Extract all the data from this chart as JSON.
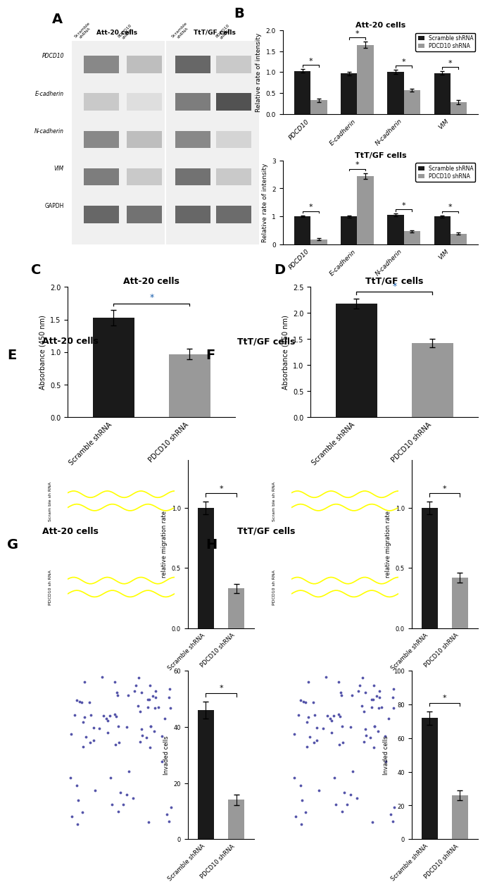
{
  "panel_B_att20": {
    "title": "Att-20 cells",
    "categories": [
      "PDCD10",
      "E-cadherin",
      "N-cadherin",
      "VIM"
    ],
    "scramble": [
      1.03,
      0.97,
      1.0,
      0.98
    ],
    "pdcd10": [
      0.33,
      1.65,
      0.57,
      0.29
    ],
    "scramble_err": [
      0.04,
      0.04,
      0.05,
      0.04
    ],
    "pdcd10_err": [
      0.04,
      0.07,
      0.04,
      0.05
    ],
    "ylabel": "Relative rate of intensity",
    "ylim": [
      0,
      2.0
    ],
    "yticks": [
      0.0,
      0.5,
      1.0,
      1.5,
      2.0
    ]
  },
  "panel_B_ttgf": {
    "title": "TtT/GF cells",
    "categories": [
      "PDCD10",
      "E-cadherin",
      "N-cadherin",
      "VIM"
    ],
    "scramble": [
      1.0,
      1.0,
      1.05,
      1.0
    ],
    "pdcd10": [
      0.18,
      2.45,
      0.47,
      0.38
    ],
    "scramble_err": [
      0.03,
      0.04,
      0.05,
      0.04
    ],
    "pdcd10_err": [
      0.04,
      0.1,
      0.04,
      0.04
    ],
    "ylabel": "Relative rate of intensity",
    "ylim": [
      0,
      3.0
    ],
    "yticks": [
      0,
      1,
      2,
      3
    ]
  },
  "panel_C": {
    "title": "Att-20 cells",
    "categories": [
      "Scramble shRNA",
      "PDCD10 shRNA"
    ],
    "values": [
      1.53,
      0.97
    ],
    "errors": [
      0.12,
      0.08
    ],
    "ylabel": "Absorbance (450 nm)",
    "ylim": [
      0,
      2.0
    ],
    "yticks": [
      0.0,
      0.5,
      1.0,
      1.5,
      2.0
    ]
  },
  "panel_D": {
    "title": "TtT/GF cells",
    "categories": [
      "Scramble shRNA",
      "PDCD10 shRNA"
    ],
    "values": [
      2.18,
      1.42
    ],
    "errors": [
      0.1,
      0.08
    ],
    "ylabel": "Absorbance (450 nm)",
    "ylim": [
      0,
      2.5
    ],
    "yticks": [
      0.0,
      0.5,
      1.0,
      1.5,
      2.0,
      2.5
    ]
  },
  "panel_E_bar": {
    "title": "",
    "categories": [
      "Scramble shRNA",
      "PDCD10 shRNA"
    ],
    "values": [
      1.0,
      0.33
    ],
    "errors": [
      0.05,
      0.04
    ],
    "ylabel": "relative migration rate",
    "ylim": [
      0,
      1.4
    ],
    "yticks": [
      0.0,
      0.5,
      1.0
    ]
  },
  "panel_F_bar": {
    "title": "",
    "categories": [
      "Scramble shRNA",
      "PDCD10 shRNA"
    ],
    "values": [
      1.0,
      0.42
    ],
    "errors": [
      0.05,
      0.04
    ],
    "ylabel": "relative migration rate",
    "ylim": [
      0,
      1.4
    ],
    "yticks": [
      0.0,
      0.5,
      1.0
    ]
  },
  "panel_G_bar": {
    "title": "",
    "categories": [
      "Scramble shRNA",
      "PDCD10 shRNA"
    ],
    "values": [
      46,
      14
    ],
    "errors": [
      3,
      2
    ],
    "ylabel": "Invaded cells",
    "ylim": [
      0,
      60
    ],
    "yticks": [
      0,
      20,
      40,
      60
    ]
  },
  "panel_H_bar": {
    "title": "",
    "categories": [
      "Scramble shRNA",
      "PDCD10 shRNA"
    ],
    "values": [
      72,
      26
    ],
    "errors": [
      4,
      3
    ],
    "ylabel": "Invaded cells",
    "ylim": [
      0,
      100
    ],
    "yticks": [
      0,
      20,
      40,
      60,
      80,
      100
    ]
  },
  "colors": {
    "black": "#1a1a1a",
    "gray": "#999999",
    "background": "#ffffff",
    "scratch_bg": "#d4cfc0",
    "invasion_bg": "#c8d4e8"
  },
  "legend": {
    "scramble_label": "Scramble shRNA",
    "pdcd10_label": "PDCD10 shRNA"
  }
}
